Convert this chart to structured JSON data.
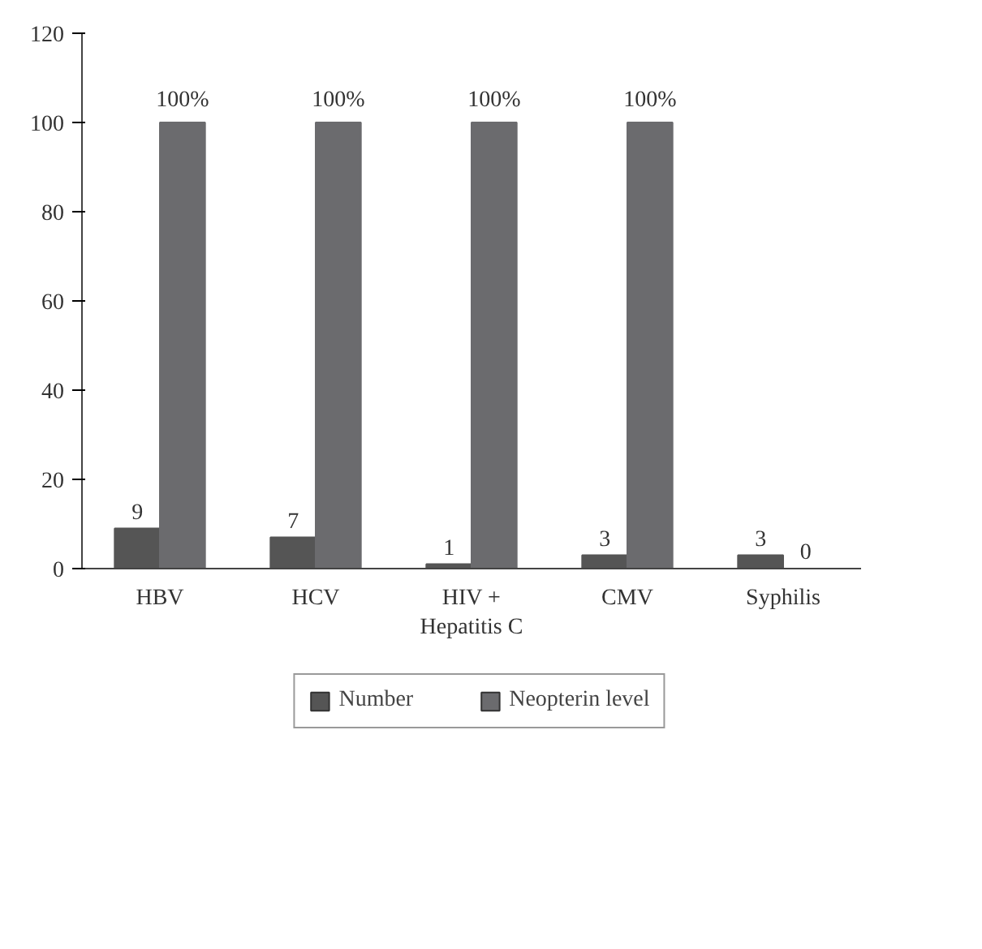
{
  "chart_data": {
    "type": "bar",
    "categories": [
      "HBV",
      "HCV",
      "HIV +\nHepatitis C",
      "CMV",
      "Syphilis"
    ],
    "series": [
      {
        "name": "Number",
        "color": "#555555",
        "values": [
          9,
          7,
          1,
          3,
          3
        ],
        "value_labels": [
          "9",
          "7",
          "1",
          "3",
          "3"
        ]
      },
      {
        "name": "Neopterin level",
        "color": "#6b6b6e",
        "values": [
          100,
          100,
          100,
          100,
          0
        ],
        "value_labels": [
          "100%",
          "100%",
          "100%",
          "100%",
          "0"
        ]
      }
    ],
    "ylim": [
      0,
      120
    ],
    "yticks": [
      0,
      20,
      40,
      60,
      80,
      100,
      120
    ],
    "grid": false,
    "legend": "bottom"
  }
}
